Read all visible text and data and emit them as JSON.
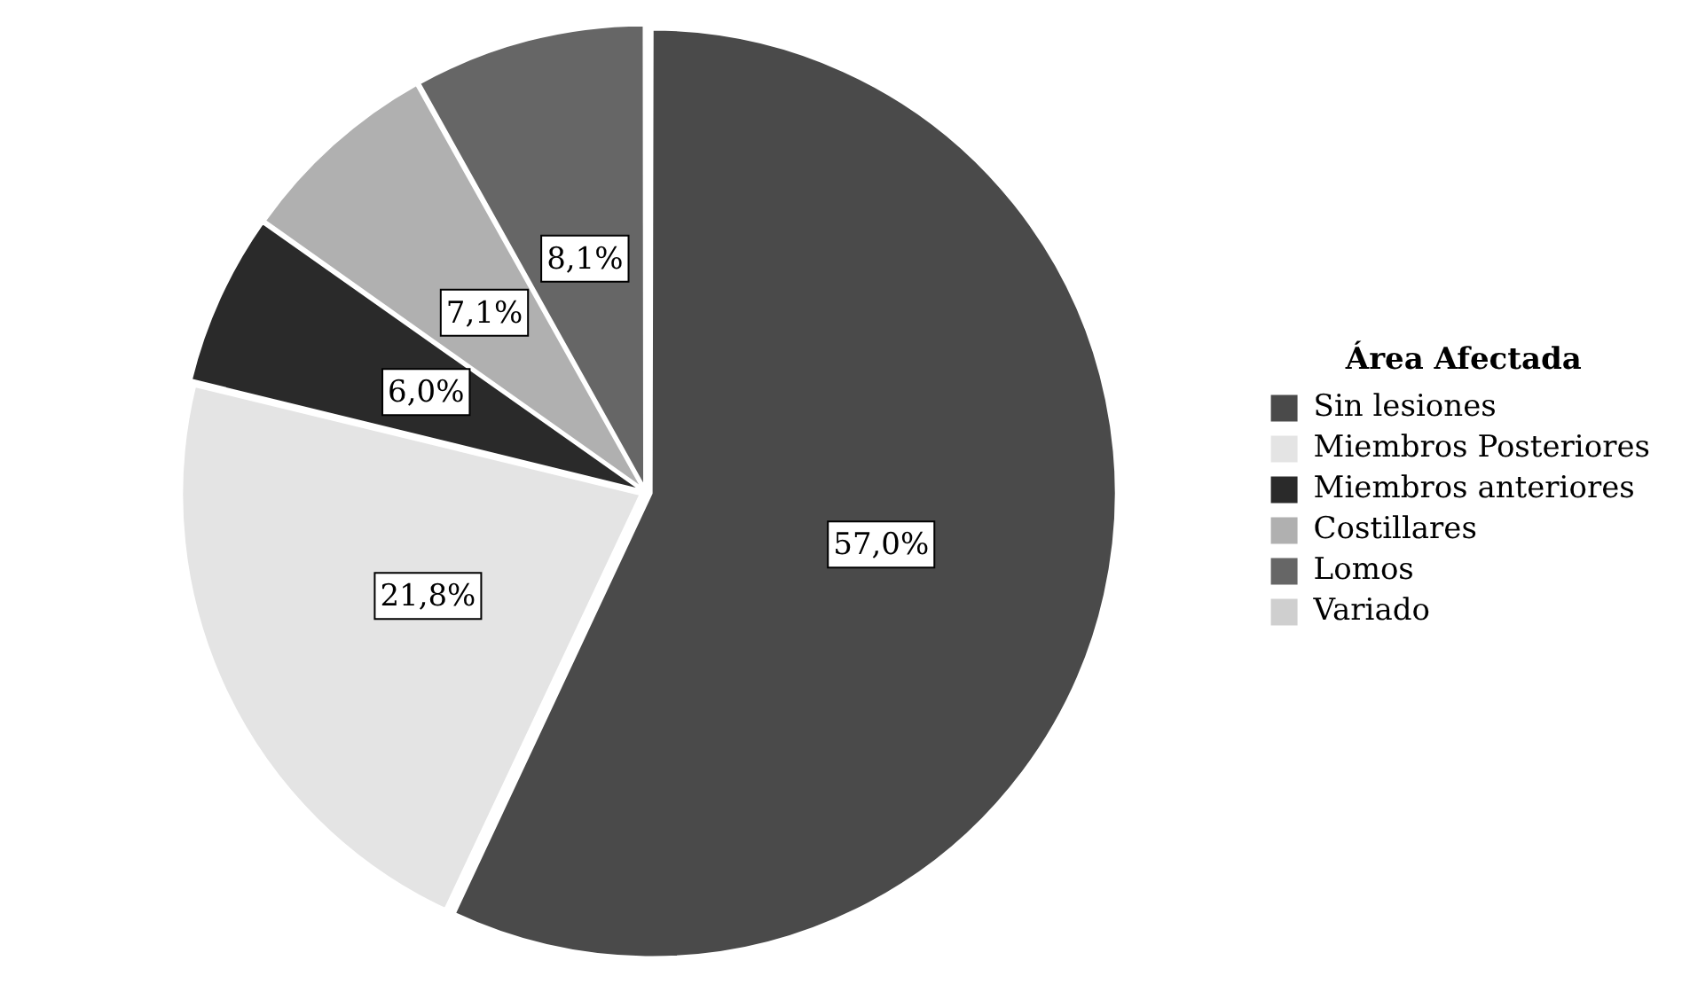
{
  "chart_data": {
    "type": "pie",
    "legend_title": "Área Afectada",
    "legend": "right",
    "categories": [
      "Sin lesiones",
      "Miembros Posteriores",
      "Miembros anteriores",
      "Costillares",
      "Lomos",
      "Variado"
    ],
    "values": [
      57.0,
      21.8,
      6.0,
      7.1,
      8.1,
      0
    ],
    "value_labels": [
      "57,0%",
      "21,8%",
      "6,0%",
      "7,1%",
      "8,1%",
      null
    ],
    "colors": [
      "#4a4a4a",
      "#e4e4e4",
      "#2a2a2a",
      "#b0b0b0",
      "#666666",
      "#cfcfcf"
    ]
  }
}
